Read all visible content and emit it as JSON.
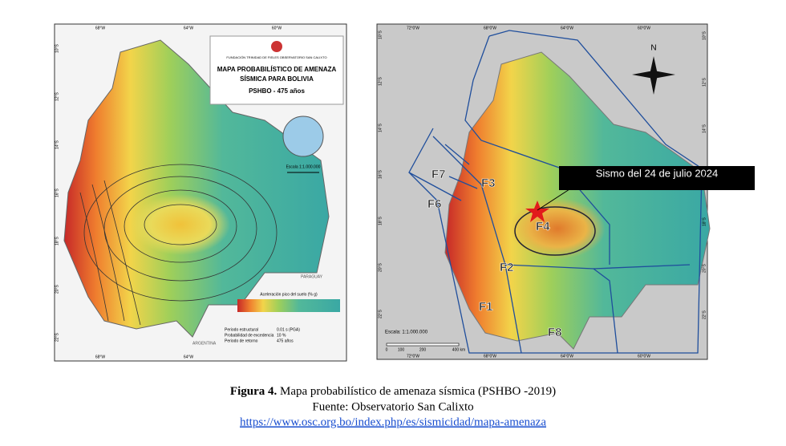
{
  "left_map": {
    "org": "FUNDACIÓN TRINIDAD DE FIELES OBSERVATORIO SAN CALIXTO",
    "title_lines": [
      "MAPA PROBABILÍSTICO DE AMENAZA",
      "SÍSMICA PARA BOLIVIA",
      "PSHBO - 475 años"
    ],
    "scale": "Escala 1:1.000.000",
    "legend_title": "Aceleración pico del suelo (% g)",
    "top_lon": [
      "68°W",
      "64°W",
      "60°W"
    ],
    "bottom_lon": [
      "68°W",
      "64°W"
    ],
    "lat": [
      "10°S",
      "12°S",
      "14°S",
      "16°S",
      "18°S",
      "20°S",
      "22°S"
    ],
    "countries": [
      "PARAGUAY",
      "ARGENTINA"
    ],
    "notes": [
      "Periodo estructural",
      "Probabilidad de excedencia",
      "Periodo de retorno"
    ],
    "note_values": [
      "0.01 s (PGA)",
      "10 %",
      "475 años"
    ]
  },
  "right_map": {
    "north": "N",
    "annotation": "Sismo del 24 de julio 2024",
    "zones": [
      "F1",
      "F2",
      "F3",
      "F4",
      "F6",
      "F7",
      "F8"
    ],
    "scale": "Escala: 1:1.000.000",
    "scale_ticks": [
      "0",
      "100",
      "200",
      "400 km"
    ],
    "top_lon": [
      "72°0'W",
      "68°0'W",
      "64°0'W",
      "60°0'W"
    ],
    "bottom_lon": [
      "72°0'W",
      "68°0'W",
      "64°0'W",
      "60°0'W"
    ],
    "lat": [
      "10°S",
      "12°S",
      "14°S",
      "16°S",
      "18°S",
      "20°S",
      "22°S"
    ]
  },
  "caption": {
    "label": "Figura 4.",
    "text": "Mapa probabilístico de amenaza sísmica (PSHBO -2019)",
    "source": "Fuente: Observatorio San Calixto",
    "url": "https://www.osc.org.bo/index.php/es/sismicidad/mapa-amenaza"
  }
}
